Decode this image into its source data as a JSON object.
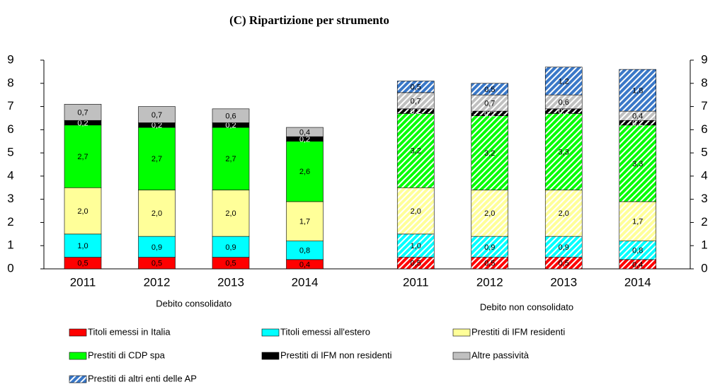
{
  "chart_data": {
    "type": "stacked_bar",
    "title": "(C) Ripartizione per strumento",
    "categories": [
      "2011",
      "2012",
      "2013",
      "2014",
      "2011",
      "2012",
      "2013",
      "2014"
    ],
    "groups": [
      {
        "name": "Debito consolidato",
        "size": 4,
        "hatched": false
      },
      {
        "name": "Debito non consolidato",
        "size": 4,
        "hatched": true
      }
    ],
    "ylim": [
      0,
      9
    ],
    "yticks": [
      0,
      1,
      2,
      3,
      4,
      5,
      6,
      7,
      8,
      9
    ],
    "y2lim": [
      0,
      9
    ],
    "y2ticks": [
      0,
      1,
      2,
      3,
      4,
      5,
      6,
      7,
      8,
      9
    ],
    "grid": false,
    "series": [
      {
        "name": "Titoli emessi in Italia",
        "color": "#ff0000",
        "values": [
          0.5,
          0.5,
          0.5,
          0.4,
          0.5,
          0.5,
          0.5,
          0.4
        ],
        "value_labels": [
          "0,5",
          "0,5",
          "0,5",
          "0,4",
          "0,5",
          "0,5",
          "0,5",
          "0,4"
        ]
      },
      {
        "name": "Titoli emessi all'estero",
        "color": "#00ffff",
        "values": [
          1.0,
          0.9,
          0.9,
          0.8,
          1.0,
          0.9,
          0.9,
          0.8
        ],
        "value_labels": [
          "1,0",
          "0,9",
          "0,9",
          "0,8",
          "1,0",
          "0,9",
          "0,9",
          "0,8"
        ]
      },
      {
        "name": "Prestiti di IFM residenti",
        "color": "#ffff99",
        "values": [
          2.0,
          2.0,
          2.0,
          1.7,
          2.0,
          2.0,
          2.0,
          1.7
        ],
        "value_labels": [
          "2,0",
          "2,0",
          "2,0",
          "1,7",
          "2,0",
          "2,0",
          "2,0",
          "1,7"
        ]
      },
      {
        "name": "Prestiti di CDP spa",
        "color": "#00ff00",
        "values": [
          2.7,
          2.7,
          2.7,
          2.6,
          3.2,
          3.2,
          3.3,
          3.3
        ],
        "value_labels": [
          "2,7",
          "2,7",
          "2,7",
          "2,6",
          "3,2",
          "3,2",
          "3,3",
          "3,3"
        ]
      },
      {
        "name": "Prestiti di IFM non residenti",
        "color": "#000000",
        "values": [
          0.2,
          0.2,
          0.2,
          0.2,
          0.2,
          0.2,
          0.2,
          0.2
        ],
        "value_labels": [
          "0,2",
          "0,2",
          "0,2",
          "0,2",
          "0,2",
          "0,2",
          "0,2",
          "0,2"
        ]
      },
      {
        "name": "Altre passività",
        "color": "#c0c0c0",
        "values": [
          0.7,
          0.7,
          0.6,
          0.4,
          0.7,
          0.7,
          0.6,
          0.4
        ],
        "value_labels": [
          "0,7",
          "0,7",
          "0,6",
          "0,4",
          "0,7",
          "0,7",
          "0,6",
          "0,4"
        ]
      },
      {
        "name": "Prestiti di altri enti delle AP",
        "color": "#3a78c8",
        "pattern": "hatch",
        "values": [
          null,
          null,
          null,
          null,
          0.5,
          0.5,
          1.2,
          1.8
        ],
        "value_labels": [
          null,
          null,
          null,
          null,
          "0,5",
          "0,5",
          "1,2",
          "1,8"
        ]
      }
    ]
  }
}
